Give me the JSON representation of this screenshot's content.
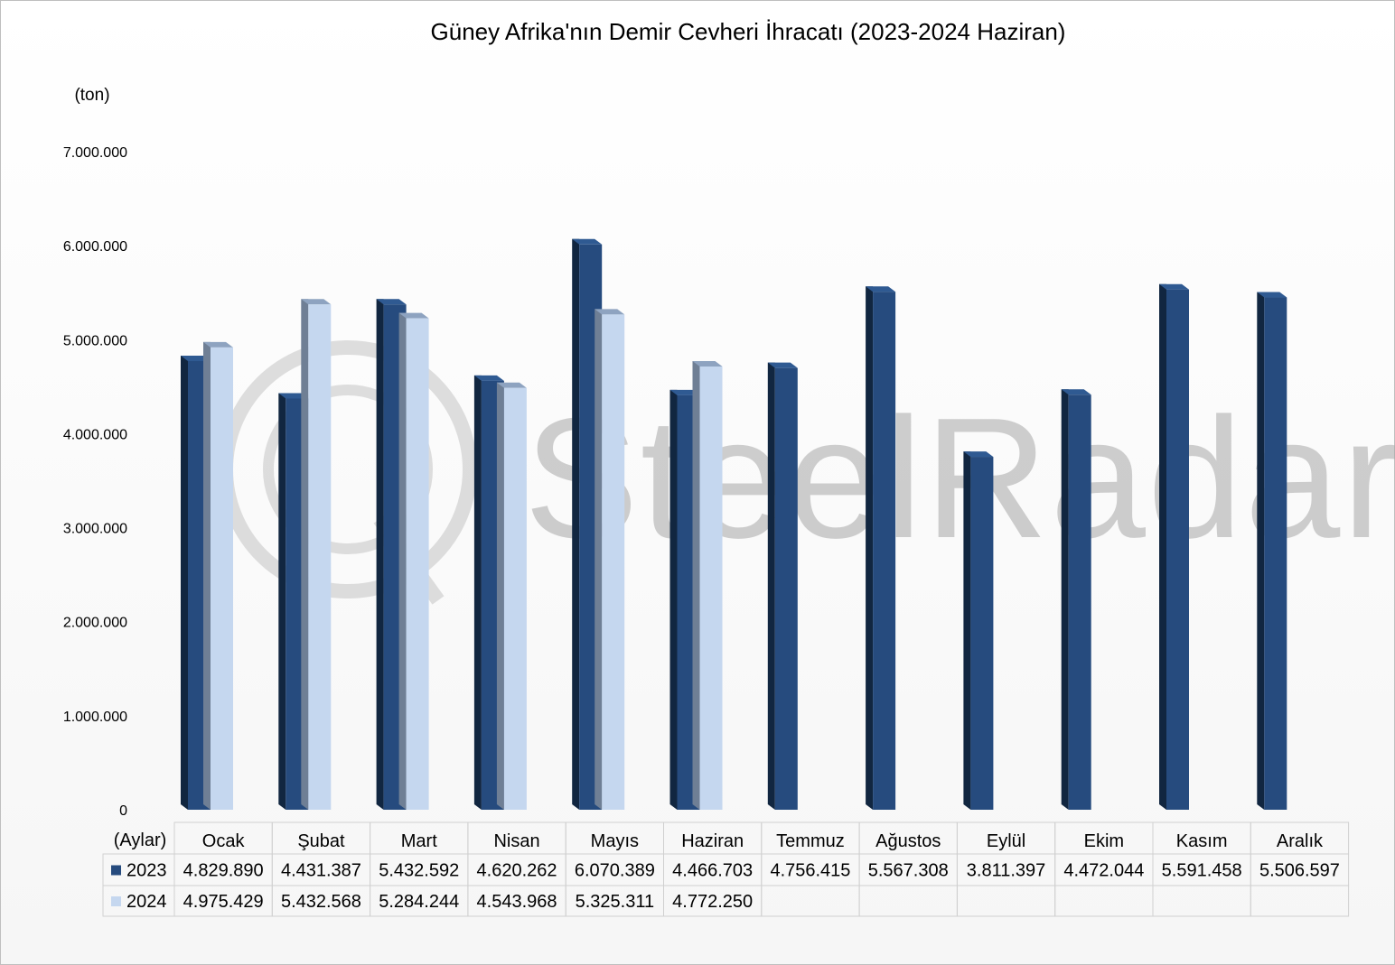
{
  "chart_data": {
    "type": "bar",
    "title": "Güney Afrika'nın Demir Cevheri İhracatı (2023-2024 Haziran)",
    "ylabel": "(ton)",
    "xlabel": "(Aylar)",
    "ylim": [
      0,
      7000000
    ],
    "yticks": [
      0,
      1000000,
      2000000,
      3000000,
      4000000,
      5000000,
      6000000,
      7000000
    ],
    "ytick_labels": [
      "0",
      "1.000.000",
      "2.000.000",
      "3.000.000",
      "4.000.000",
      "5.000.000",
      "6.000.000",
      "7.000.000"
    ],
    "categories": [
      "Ocak",
      "Şubat",
      "Mart",
      "Nisan",
      "Mayıs",
      "Haziran",
      "Temmuz",
      "Ağustos",
      "Eylül",
      "Ekim",
      "Kasım",
      "Aralık"
    ],
    "series": [
      {
        "name": "2023",
        "color": "#264b7e",
        "values": [
          4829890,
          4431387,
          5432592,
          4620262,
          6070389,
          4466703,
          4756415,
          5567308,
          3811397,
          4472044,
          5591458,
          5506597
        ],
        "labels": [
          "4.829.890",
          "4.431.387",
          "5.432.592",
          "4.620.262",
          "6.070.389",
          "4.466.703",
          "4.756.415",
          "5.567.308",
          "3.811.397",
          "4.472.044",
          "5.591.458",
          "5.506.597"
        ]
      },
      {
        "name": "2024",
        "color": "#c5d7ef",
        "values": [
          4975429,
          5432568,
          5284244,
          4543968,
          5325311,
          4772250,
          null,
          null,
          null,
          null,
          null,
          null
        ],
        "labels": [
          "4.975.429",
          "5.432.568",
          "5.284.244",
          "4.543.968",
          "5.325.311",
          "4.772.250",
          "",
          "",
          "",
          "",
          "",
          ""
        ]
      }
    ],
    "legend": "data-table",
    "grid": false,
    "watermark": "SteelRadar"
  }
}
